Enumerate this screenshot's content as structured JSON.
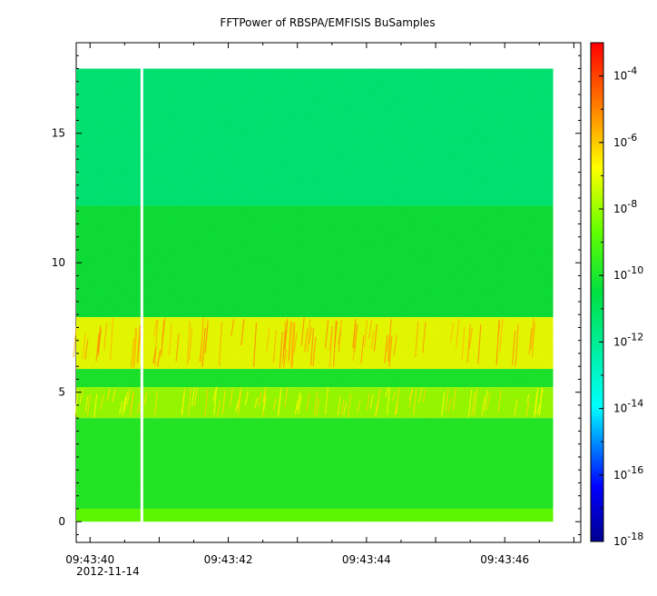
{
  "chart_data": {
    "type": "heatmap",
    "title": "FFTPower of RBSPA/EMFISIS  BuSamples",
    "xlabel": "",
    "ylabel": "",
    "x_tick_labels": [
      "09:43:40",
      "09:43:42",
      "09:43:44",
      "09:43:46"
    ],
    "x_date_label": "2012-11-14",
    "x_range": [
      "09:43:39.8",
      "09:43:47.1"
    ],
    "data_x_range": [
      "09:43:39.8",
      "09:43:46.7"
    ],
    "gap_time": "09:43:40.75",
    "y_ticks": [
      0,
      5,
      10,
      15
    ],
    "y_tick_labels": [
      "0",
      "5",
      "10",
      "15"
    ],
    "ylim": [
      -0.8,
      18.5
    ],
    "data_y_range": [
      0,
      17.5
    ],
    "colorbar": {
      "scale": "log",
      "range": [
        1e-18,
        0.001
      ],
      "tick_exponents": [
        -4,
        -6,
        -8,
        -10,
        -12,
        -14,
        -16,
        -18
      ],
      "tick_base": "10"
    },
    "bands": [
      {
        "y": [
          12.2,
          17.5
        ],
        "log_power": -11.5
      },
      {
        "y": [
          7.9,
          12.2
        ],
        "log_power": -10.3
      },
      {
        "y": [
          5.9,
          7.9
        ],
        "log_power": -7.0
      },
      {
        "y": [
          5.2,
          5.9
        ],
        "log_power": -10.0
      },
      {
        "y": [
          4.0,
          5.2
        ],
        "log_power": -8.0
      },
      {
        "y": [
          0.5,
          4.0
        ],
        "log_power": -9.8
      },
      {
        "y": [
          0.0,
          0.5
        ],
        "log_power": -8.7
      }
    ]
  }
}
